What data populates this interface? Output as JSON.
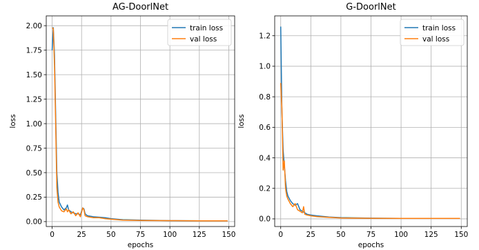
{
  "colors": {
    "train": "#1f77b4",
    "val": "#ff7f0e",
    "grid": "#b0b0b0",
    "axes": "#000000"
  },
  "chart_data": [
    {
      "type": "line",
      "title": "AG-DoorlNet",
      "xlabel": "epochs",
      "ylabel": "loss",
      "xlim": [
        -5,
        155
      ],
      "ylim": [
        -0.05,
        2.1
      ],
      "xticks": [
        0,
        25,
        50,
        75,
        100,
        125,
        150
      ],
      "yticks": [
        0.0,
        0.25,
        0.5,
        0.75,
        1.0,
        1.25,
        1.5,
        1.75,
        2.0
      ],
      "ytick_labels": [
        "0.00",
        "0.25",
        "0.50",
        "0.75",
        "1.00",
        "1.25",
        "1.50",
        "1.75",
        "2.00"
      ],
      "grid": true,
      "legend_position": "top-right",
      "series": [
        {
          "name": "train loss",
          "color_key": "train",
          "x": [
            0,
            1,
            2,
            3,
            4,
            5,
            6,
            8,
            10,
            12,
            13,
            14,
            16,
            18,
            20,
            22,
            24,
            26,
            27,
            28,
            30,
            35,
            40,
            45,
            50,
            60,
            75,
            100,
            125,
            149
          ],
          "y": [
            1.75,
            1.98,
            1.7,
            1.1,
            0.5,
            0.3,
            0.2,
            0.15,
            0.12,
            0.14,
            0.17,
            0.12,
            0.1,
            0.09,
            0.08,
            0.08,
            0.07,
            0.14,
            0.13,
            0.08,
            0.06,
            0.05,
            0.045,
            0.04,
            0.03,
            0.02,
            0.015,
            0.01,
            0.008,
            0.008
          ]
        },
        {
          "name": "val loss",
          "color_key": "val",
          "x": [
            0,
            1,
            2,
            3,
            4,
            5,
            6,
            8,
            10,
            12,
            13,
            14,
            16,
            18,
            20,
            22,
            24,
            26,
            27,
            28,
            30,
            35,
            40,
            45,
            50,
            60,
            75,
            100,
            125,
            149
          ],
          "y": [
            1.98,
            1.97,
            1.6,
            1.0,
            0.35,
            0.2,
            0.15,
            0.11,
            0.1,
            0.13,
            0.1,
            0.12,
            0.08,
            0.1,
            0.06,
            0.09,
            0.05,
            0.14,
            0.12,
            0.06,
            0.05,
            0.04,
            0.04,
            0.03,
            0.025,
            0.015,
            0.012,
            0.01,
            0.008,
            0.008
          ]
        }
      ]
    },
    {
      "type": "line",
      "title": "G-DoorlNet",
      "xlabel": "epochs",
      "ylabel": "loss",
      "xlim": [
        -5,
        155
      ],
      "ylim": [
        -0.05,
        1.33
      ],
      "xticks": [
        0,
        25,
        50,
        75,
        100,
        125,
        150
      ],
      "yticks": [
        0.0,
        0.2,
        0.4,
        0.6,
        0.8,
        1.0,
        1.2
      ],
      "ytick_labels": [
        "0.0",
        "0.2",
        "0.4",
        "0.6",
        "0.8",
        "1.0",
        "1.2"
      ],
      "grid": true,
      "legend_position": "top-right",
      "series": [
        {
          "name": "train loss",
          "color_key": "train",
          "x": [
            0,
            1,
            2,
            3,
            4,
            5,
            6,
            8,
            10,
            12,
            14,
            16,
            18,
            20,
            22,
            25,
            30,
            40,
            50,
            75,
            100,
            125,
            149
          ],
          "y": [
            1.26,
            0.7,
            0.45,
            0.35,
            0.25,
            0.18,
            0.15,
            0.12,
            0.1,
            0.09,
            0.1,
            0.06,
            0.05,
            0.04,
            0.03,
            0.025,
            0.02,
            0.012,
            0.008,
            0.005,
            0.003,
            0.003,
            0.003
          ]
        },
        {
          "name": "val loss",
          "color_key": "val",
          "x": [
            0,
            1,
            2,
            3,
            4,
            5,
            6,
            8,
            10,
            12,
            14,
            16,
            18,
            19,
            20,
            22,
            25,
            30,
            40,
            50,
            75,
            100,
            125,
            149
          ],
          "y": [
            0.89,
            0.72,
            0.32,
            0.38,
            0.2,
            0.15,
            0.13,
            0.1,
            0.08,
            0.1,
            0.06,
            0.05,
            0.04,
            0.08,
            0.03,
            0.025,
            0.02,
            0.015,
            0.01,
            0.006,
            0.004,
            0.003,
            0.003,
            0.003
          ]
        }
      ]
    }
  ]
}
